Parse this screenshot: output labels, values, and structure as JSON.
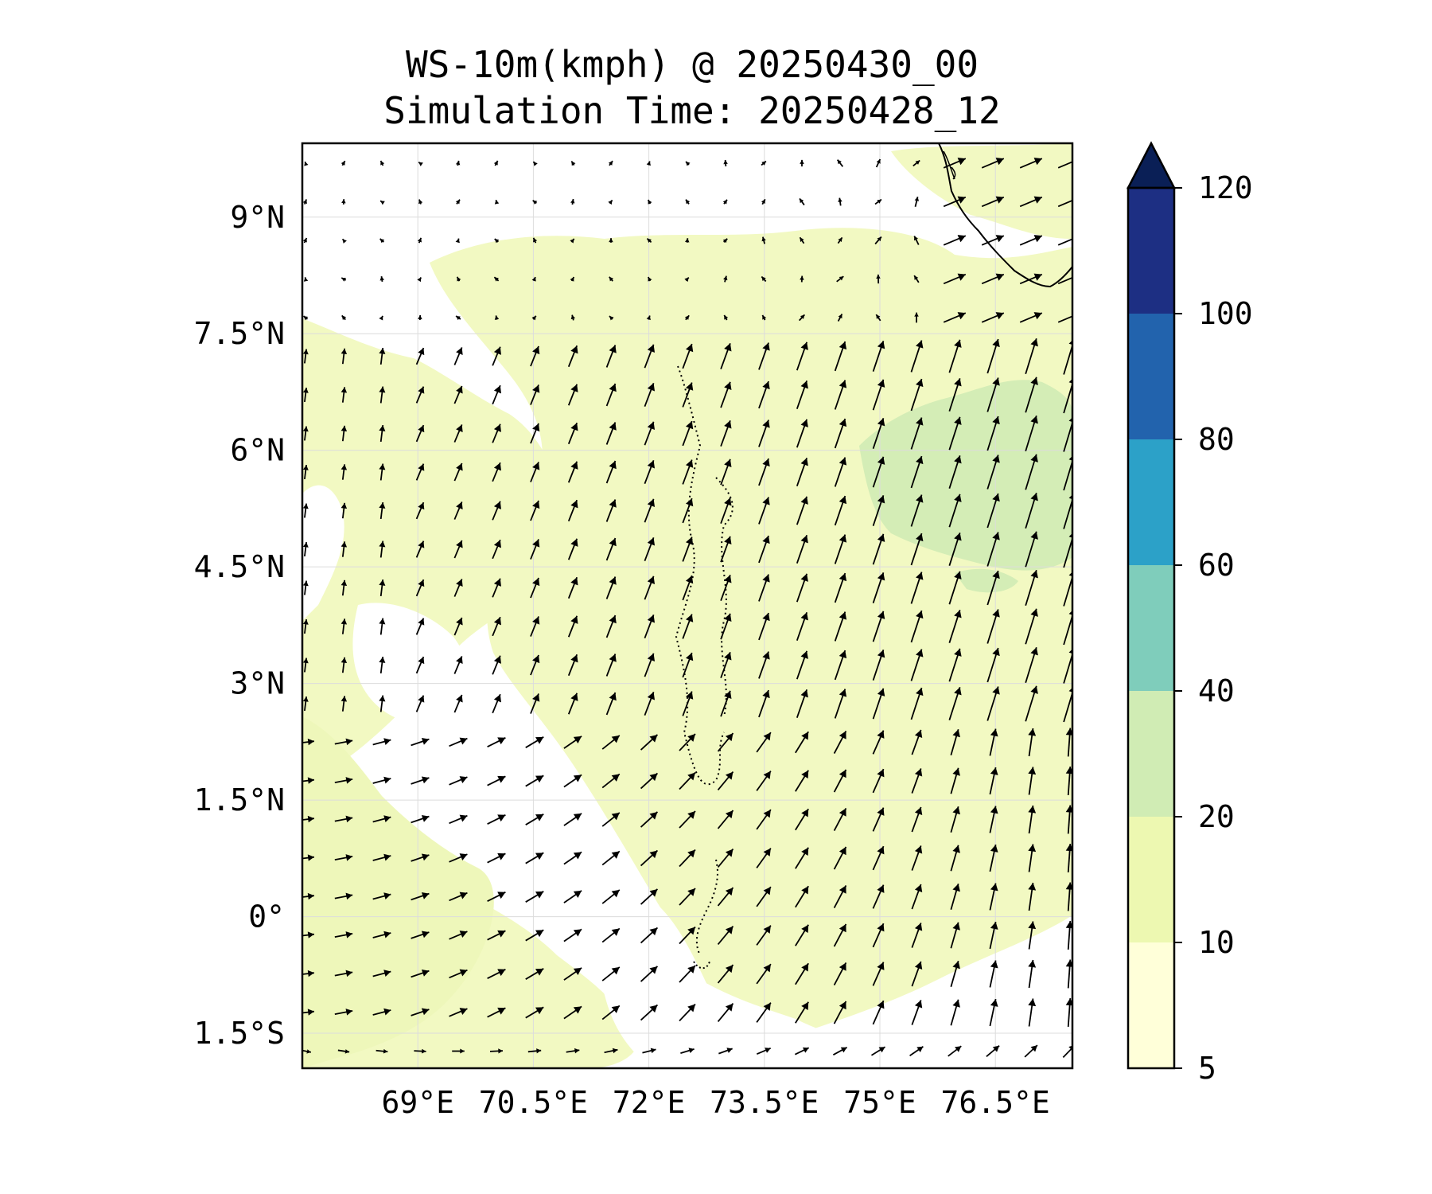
{
  "title": "WS-10m(kmph) @ 20250430_00",
  "subtitle": "Simulation Time: 20250428_12",
  "map": {
    "lon_range": [
      67.5,
      77.5
    ],
    "lat_range": [
      -1.95,
      9.95
    ],
    "lon_ticks": [
      {
        "value": 69.0,
        "label": "69°E"
      },
      {
        "value": 70.5,
        "label": "70.5°E"
      },
      {
        "value": 72.0,
        "label": "72°E"
      },
      {
        "value": 73.5,
        "label": "73.5°E"
      },
      {
        "value": 75.0,
        "label": "75°E"
      },
      {
        "value": 76.5,
        "label": "76.5°E"
      }
    ],
    "lat_ticks": [
      {
        "value": 9.0,
        "label": "9°N"
      },
      {
        "value": 7.5,
        "label": "7.5°N"
      },
      {
        "value": 6.0,
        "label": "6°N"
      },
      {
        "value": 4.5,
        "label": "4.5°N"
      },
      {
        "value": 3.0,
        "label": "3°N"
      },
      {
        "value": 1.5,
        "label": "1.5°N"
      },
      {
        "value": 0.0,
        "label": "0°"
      },
      {
        "value": -1.5,
        "label": "1.5°S"
      }
    ],
    "grid": true,
    "wind_field": "vector arrows on a regular grid, shaded by speed"
  },
  "colorbar": {
    "extend": "max",
    "ticks": [
      {
        "value": 5,
        "label": "5"
      },
      {
        "value": 10,
        "label": "10"
      },
      {
        "value": 20,
        "label": "20"
      },
      {
        "value": 40,
        "label": "40"
      },
      {
        "value": 60,
        "label": "60"
      },
      {
        "value": 80,
        "label": "80"
      },
      {
        "value": 100,
        "label": "100"
      },
      {
        "value": 120,
        "label": "120"
      }
    ],
    "colors": [
      "#ffffd9",
      "#edf8b1",
      "#d0ecb4",
      "#7fcdbb",
      "#2ca1c8",
      "#2263ad",
      "#1d2f83",
      "#0a1f56"
    ]
  }
}
